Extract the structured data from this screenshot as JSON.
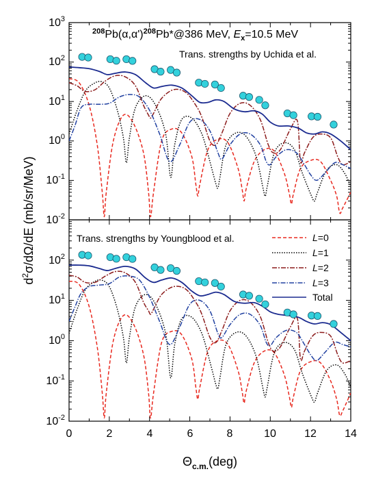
{
  "chart_data": [
    {
      "type": "line",
      "panel": "top",
      "title": {
        "part1": "208",
        "part2": "Pb(",
        "part3": "α,α'",
        "part4": ")",
        "part5": "208",
        "part6": "Pb*@386 MeV, ",
        "part7": "E",
        "part8": "x",
        "part9": "=10.5 MeV"
      },
      "annotation": "Trans. strengths by Uchida et al.",
      "xlim": [
        0,
        14
      ],
      "ylim": [
        0.01,
        1000
      ],
      "yscale": "log",
      "data_points": {
        "x": [
          0.65,
          0.95,
          2.05,
          2.35,
          2.85,
          3.15,
          4.25,
          4.55,
          5.05,
          5.35,
          6.45,
          6.75,
          7.25,
          7.55,
          8.65,
          8.95,
          9.45,
          9.75,
          10.85,
          11.15,
          12.05,
          12.35,
          13.15
        ],
        "y": [
          135,
          130,
          118,
          108,
          118,
          107,
          66,
          57,
          63,
          54,
          30,
          28,
          27,
          22,
          14,
          13,
          11,
          8,
          5,
          4.5,
          4.2,
          4.1,
          2.6
        ]
      },
      "series": [
        {
          "name": "L=0",
          "color": "#e8281e",
          "dash": "5,3",
          "x": [
            0,
            0.5,
            1.0,
            1.4,
            1.65,
            1.75,
            1.85,
            2.2,
            2.7,
            3.2,
            3.7,
            3.95,
            4.05,
            4.2,
            4.6,
            5.1,
            5.6,
            6.1,
            6.3,
            6.4,
            6.5,
            6.9,
            7.4,
            7.9,
            8.4,
            8.6,
            8.7,
            8.8,
            9.2,
            9.7,
            10.2,
            10.7,
            10.95,
            11.05,
            11.15,
            11.5,
            12.0,
            12.5,
            13.0,
            13.3,
            13.45,
            13.6,
            14.0
          ],
          "y": [
            38,
            30,
            8,
            0.8,
            0.05,
            0.012,
            0.05,
            1.0,
            4.5,
            2.8,
            0.5,
            0.05,
            0.012,
            0.05,
            1.0,
            2.0,
            1.6,
            0.4,
            0.08,
            0.04,
            0.08,
            0.6,
            1.1,
            0.9,
            0.2,
            0.06,
            0.03,
            0.06,
            0.3,
            0.6,
            0.55,
            0.15,
            0.045,
            0.025,
            0.045,
            0.2,
            0.32,
            0.3,
            0.1,
            0.04,
            0.015,
            0.02,
            0.05
          ]
        },
        {
          "name": "L=1",
          "color": "#000000",
          "dash": "1.5,2",
          "x": [
            0,
            0.4,
            0.8,
            1.2,
            1.6,
            2.0,
            2.4,
            2.7,
            2.85,
            3.0,
            3.3,
            3.8,
            4.3,
            4.8,
            5.05,
            5.25,
            5.6,
            6.1,
            6.6,
            7.0,
            7.3,
            7.4,
            7.5,
            7.8,
            8.3,
            8.8,
            9.3,
            9.65,
            9.75,
            9.85,
            10.2,
            10.7,
            11.2,
            11.6,
            12.05,
            12.2,
            12.35,
            12.8,
            13.3,
            13.7,
            14.0
          ],
          "y": [
            1.5,
            6,
            18,
            28,
            32,
            22,
            6,
            1.2,
            0.28,
            1.2,
            7,
            14,
            8,
            1.5,
            0.12,
            0.8,
            3.5,
            3.8,
            1.5,
            0.3,
            0.08,
            0.065,
            0.12,
            0.8,
            1.6,
            1.3,
            0.4,
            0.06,
            0.04,
            0.07,
            0.5,
            0.9,
            0.6,
            0.15,
            0.04,
            0.03,
            0.05,
            0.18,
            0.25,
            0.15,
            0.07
          ]
        },
        {
          "name": "L=2",
          "color": "#8b1a1a",
          "dash": "7,2,2,2",
          "x": [
            0,
            0.4,
            0.8,
            1.3,
            1.8,
            2.3,
            2.8,
            3.3,
            3.7,
            3.95,
            4.05,
            4.2,
            4.6,
            5.2,
            5.8,
            6.3,
            6.6,
            7.0,
            7.3,
            7.6,
            8.0,
            8.5,
            9.0,
            9.5,
            9.9,
            10.15,
            10.5,
            11.0,
            11.35,
            11.5,
            11.7,
            12.1,
            12.5,
            13.0,
            13.35,
            13.6,
            14.0
          ],
          "y": [
            30,
            25,
            18,
            20,
            33,
            45,
            42,
            25,
            8,
            4.5,
            3.8,
            5,
            12,
            20,
            17,
            8,
            4,
            1.0,
            0.8,
            1.6,
            5,
            9,
            8,
            3.5,
            0.8,
            0.5,
            0.6,
            2,
            3.2,
            0.3,
            0.5,
            1.2,
            1.5,
            1.2,
            0.4,
            0.25,
            0.3
          ]
        },
        {
          "name": "L=3",
          "color": "#2040a0",
          "dash": "7,2,1.5,2",
          "x": [
            0,
            0.3,
            0.6,
            1.0,
            1.5,
            2.0,
            2.5,
            3.0,
            3.5,
            4.0,
            4.5,
            5.0,
            5.5,
            6.0,
            6.5,
            7.0,
            7.4,
            7.6,
            8.0,
            8.5,
            9.0,
            9.5,
            9.8,
            10.0,
            10.3,
            10.8,
            11.3,
            11.7,
            12.0,
            12.3,
            12.7,
            13.2,
            13.6,
            14.0
          ],
          "y": [
            1.0,
            2.5,
            7,
            8.5,
            8.5,
            9,
            13,
            15,
            13,
            6,
            1.5,
            0.3,
            0.8,
            3,
            3.5,
            1.8,
            0.5,
            0.35,
            0.8,
            1.5,
            1.5,
            0.8,
            0.3,
            0.25,
            0.4,
            0.6,
            0.5,
            0.25,
            0.14,
            0.1,
            0.15,
            0.28,
            0.25,
            0.2
          ]
        },
        {
          "name": "Total",
          "color": "#1a2a8f",
          "dash": "",
          "x": [
            0,
            0.5,
            1.0,
            1.5,
            1.9,
            2.3,
            2.8,
            3.3,
            3.8,
            4.2,
            4.6,
            5.1,
            5.6,
            6.1,
            6.5,
            6.9,
            7.3,
            7.7,
            8.2,
            8.7,
            9.2,
            9.6,
            10.0,
            10.4,
            10.9,
            11.4,
            11.8,
            12.2,
            12.6,
            13.0,
            13.5,
            14.0
          ],
          "y": [
            75,
            72,
            68,
            58,
            48,
            52,
            56,
            48,
            30,
            22,
            24,
            26,
            22,
            14,
            9.5,
            9.5,
            11,
            10,
            6.5,
            5.5,
            5.8,
            4.8,
            3.0,
            2.4,
            2.4,
            2.1,
            1.6,
            1.5,
            1.7,
            1.5,
            1.0,
            0.6
          ]
        }
      ]
    },
    {
      "type": "line",
      "panel": "bottom",
      "annotation": "Trans. strengths by Youngblood et al.",
      "xlim": [
        0,
        14
      ],
      "ylim": [
        0.01,
        1000
      ],
      "yscale": "log",
      "data_points": {
        "x": [
          0.65,
          0.95,
          2.05,
          2.35,
          2.85,
          3.15,
          4.25,
          4.55,
          5.05,
          5.35,
          6.45,
          6.75,
          7.25,
          7.55,
          8.65,
          8.95,
          9.45,
          9.75,
          10.85,
          11.15,
          12.05,
          12.35,
          13.15
        ],
        "y": [
          135,
          130,
          118,
          108,
          118,
          107,
          66,
          57,
          63,
          54,
          30,
          28,
          27,
          22,
          14,
          13,
          11,
          8,
          5,
          4.5,
          4.2,
          4.1,
          2.6
        ]
      },
      "series": [
        {
          "name": "L=0",
          "color": "#e8281e",
          "dash": "5,3",
          "x": [
            0,
            0.5,
            1.0,
            1.4,
            1.65,
            1.75,
            1.85,
            2.2,
            2.7,
            3.2,
            3.7,
            3.95,
            4.05,
            4.2,
            4.6,
            5.1,
            5.6,
            6.1,
            6.3,
            6.4,
            6.5,
            6.9,
            7.4,
            7.9,
            8.4,
            8.6,
            8.7,
            8.8,
            9.2,
            9.7,
            10.2,
            10.7,
            10.95,
            11.05,
            11.15,
            11.5,
            12.0,
            12.5,
            13.0,
            13.3,
            13.45,
            13.6,
            14.0
          ],
          "y": [
            30,
            25,
            7,
            0.7,
            0.05,
            0.012,
            0.05,
            1.0,
            4.2,
            2.6,
            0.45,
            0.05,
            0.012,
            0.05,
            0.9,
            1.7,
            1.4,
            0.35,
            0.07,
            0.035,
            0.07,
            0.55,
            1.0,
            0.8,
            0.18,
            0.055,
            0.028,
            0.055,
            0.28,
            0.55,
            0.5,
            0.14,
            0.04,
            0.022,
            0.04,
            0.18,
            0.3,
            0.28,
            0.1,
            0.035,
            0.014,
            0.018,
            0.05
          ]
        },
        {
          "name": "L=1",
          "color": "#000000",
          "dash": "1.5,2",
          "x": [
            0,
            0.4,
            0.8,
            1.2,
            1.6,
            2.0,
            2.4,
            2.7,
            2.85,
            3.0,
            3.3,
            3.8,
            4.3,
            4.8,
            5.05,
            5.25,
            5.6,
            6.1,
            6.6,
            7.0,
            7.3,
            7.4,
            7.5,
            7.8,
            8.3,
            8.8,
            9.3,
            9.65,
            9.75,
            9.85,
            10.2,
            10.7,
            11.2,
            11.6,
            12.05,
            12.2,
            12.35,
            12.8,
            13.3,
            13.7,
            14.0
          ],
          "y": [
            1.5,
            6,
            18,
            28,
            32,
            22,
            6,
            1.2,
            0.28,
            1.2,
            7,
            14,
            8,
            1.5,
            0.12,
            0.8,
            3.5,
            3.8,
            1.5,
            0.3,
            0.08,
            0.065,
            0.12,
            0.8,
            1.6,
            1.3,
            0.4,
            0.06,
            0.04,
            0.07,
            0.5,
            0.9,
            0.6,
            0.15,
            0.04,
            0.03,
            0.05,
            0.18,
            0.25,
            0.15,
            0.07
          ]
        },
        {
          "name": "L=2",
          "color": "#8b1a1a",
          "dash": "7,2,2,2",
          "x": [
            0,
            0.4,
            0.8,
            1.3,
            1.8,
            2.3,
            2.8,
            3.3,
            3.7,
            3.95,
            4.05,
            4.2,
            4.6,
            5.2,
            5.8,
            6.3,
            6.6,
            7.0,
            7.3,
            7.6,
            8.0,
            8.5,
            9.0,
            9.5,
            9.9,
            10.15,
            10.5,
            11.0,
            11.35,
            11.5,
            11.7,
            12.1,
            12.5,
            13.0,
            13.35,
            13.6,
            14.0
          ],
          "y": [
            42,
            38,
            28,
            28,
            40,
            52,
            48,
            28,
            9,
            5.5,
            4.5,
            6,
            14,
            22,
            19,
            9,
            4.5,
            1.2,
            0.9,
            1.8,
            5.5,
            10,
            9,
            4,
            0.9,
            0.55,
            0.7,
            2.2,
            3.5,
            0.35,
            0.55,
            1.3,
            1.6,
            1.3,
            0.45,
            0.28,
            0.32
          ]
        },
        {
          "name": "L=3",
          "color": "#2040a0",
          "dash": "7,2,1.5,2",
          "x": [
            0,
            0.3,
            0.6,
            1.0,
            1.5,
            2.0,
            2.5,
            3.0,
            3.5,
            4.0,
            4.5,
            5.0,
            5.5,
            6.0,
            6.5,
            7.0,
            7.4,
            7.6,
            8.0,
            8.5,
            9.0,
            9.5,
            9.8,
            10.0,
            10.3,
            10.8,
            11.3,
            11.7,
            12.0,
            12.3,
            12.7,
            13.2,
            13.6,
            14.0
          ],
          "y": [
            3,
            7,
            15,
            22,
            24,
            26,
            38,
            40,
            32,
            12,
            3,
            0.8,
            2.2,
            8,
            10,
            5.5,
            1.5,
            1.2,
            2.5,
            4.5,
            4.5,
            2.4,
            0.9,
            0.75,
            1.2,
            1.8,
            1.6,
            0.8,
            0.45,
            0.32,
            0.5,
            0.9,
            0.8,
            0.7
          ]
        },
        {
          "name": "Total",
          "color": "#1a2a8f",
          "dash": "",
          "x": [
            0,
            0.5,
            1.0,
            1.5,
            1.9,
            2.3,
            2.8,
            3.3,
            3.8,
            4.2,
            4.6,
            5.1,
            5.6,
            6.1,
            6.5,
            6.9,
            7.3,
            7.7,
            8.2,
            8.7,
            9.2,
            9.6,
            10.0,
            10.4,
            10.9,
            11.4,
            11.8,
            12.2,
            12.6,
            13.0,
            13.5,
            14.0
          ],
          "y": [
            75,
            75,
            72,
            62,
            55,
            62,
            70,
            60,
            36,
            28,
            32,
            36,
            28,
            17,
            13,
            14,
            16,
            14,
            9.5,
            8.5,
            8.8,
            7.2,
            5.2,
            4.5,
            4.2,
            3.8,
            3.0,
            2.6,
            2.8,
            2.5,
            1.6,
            1.0
          ]
        }
      ]
    }
  ],
  "axes": {
    "xlabel": {
      "main": "Θ",
      "sub": "c.m.",
      "unit": "(deg)"
    },
    "ylabel": {
      "d": "d",
      "sup": "2",
      "rest": "σ/dΩ/dE (mb/sr/MeV)"
    },
    "xticks": [
      "0",
      "2",
      "4",
      "6",
      "8",
      "10",
      "12",
      "14"
    ],
    "yticks": [
      {
        "base": "10",
        "exp": "-2"
      },
      {
        "base": "10",
        "exp": "-1"
      },
      {
        "base": "10",
        "exp": "0"
      },
      {
        "base": "10",
        "exp": "1"
      },
      {
        "base": "10",
        "exp": "2"
      },
      {
        "base": "10",
        "exp": "3"
      }
    ]
  },
  "legend": {
    "placement": "top-right of bottom panel",
    "entries": [
      {
        "prefix": "L",
        "suffix": "=0",
        "color": "#e8281e",
        "dash": "5,3"
      },
      {
        "prefix": "L",
        "suffix": "=1",
        "color": "#000000",
        "dash": "1.5,2"
      },
      {
        "prefix": "L",
        "suffix": "=2",
        "color": "#8b1a1a",
        "dash": "7,2,2,2"
      },
      {
        "prefix": "L",
        "suffix": "=3",
        "color": "#2040a0",
        "dash": "7,2,1.5,2"
      },
      {
        "prefix": "",
        "suffix": "Total",
        "color": "#1a2a8f",
        "dash": ""
      }
    ]
  },
  "colors": {
    "marker_fill": "#33d1dc",
    "marker_stroke": "#1a5a70"
  }
}
